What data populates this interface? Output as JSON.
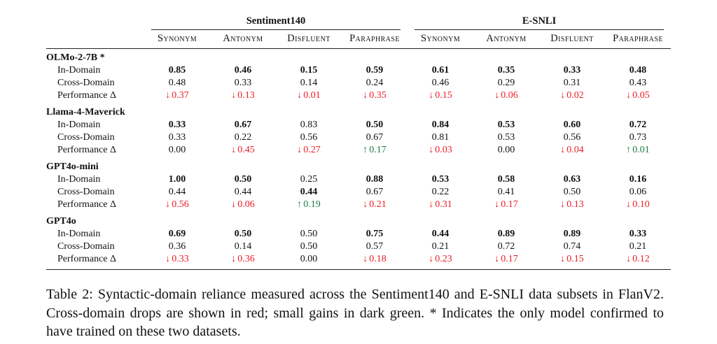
{
  "colors": {
    "text": "#111111",
    "drop_red": "#ed1c24",
    "gain_green": "#1b7b46"
  },
  "icons": {
    "down_arrow": "↓",
    "up_arrow": "↑"
  },
  "table": {
    "groups": [
      {
        "label": "Sentiment140",
        "columns": [
          "Synonym",
          "Antonym",
          "Disfluent",
          "Paraphrase"
        ]
      },
      {
        "label": "E-SNLI",
        "columns": [
          "Synonym",
          "Antonym",
          "Disfluent",
          "Paraphrase"
        ]
      }
    ],
    "row_labels": {
      "in_domain": "In-Domain",
      "cross_domain": "Cross-Domain",
      "delta": "Performance Δ"
    },
    "models": [
      {
        "name": "OLMo-2-7B *",
        "in_domain": [
          {
            "v": "0.85",
            "b": true
          },
          {
            "v": "0.46",
            "b": true
          },
          {
            "v": "0.15",
            "b": true
          },
          {
            "v": "0.59",
            "b": true
          },
          {
            "v": "0.61",
            "b": true
          },
          {
            "v": "0.35",
            "b": true
          },
          {
            "v": "0.33",
            "b": true
          },
          {
            "v": "0.48",
            "b": true
          }
        ],
        "cross_domain": [
          {
            "v": "0.48",
            "b": false
          },
          {
            "v": "0.33",
            "b": false
          },
          {
            "v": "0.14",
            "b": false
          },
          {
            "v": "0.24",
            "b": false
          },
          {
            "v": "0.46",
            "b": false
          },
          {
            "v": "0.29",
            "b": false
          },
          {
            "v": "0.31",
            "b": false
          },
          {
            "v": "0.43",
            "b": false
          }
        ],
        "delta": [
          {
            "dir": "down",
            "v": "0.37"
          },
          {
            "dir": "down",
            "v": "0.13"
          },
          {
            "dir": "down",
            "v": "0.01"
          },
          {
            "dir": "down",
            "v": "0.35"
          },
          {
            "dir": "down",
            "v": "0.15"
          },
          {
            "dir": "down",
            "v": "0.06"
          },
          {
            "dir": "down",
            "v": "0.02"
          },
          {
            "dir": "down",
            "v": "0.05"
          }
        ]
      },
      {
        "name": "Llama-4-Maverick",
        "in_domain": [
          {
            "v": "0.33",
            "b": true
          },
          {
            "v": "0.67",
            "b": true
          },
          {
            "v": "0.83",
            "b": false
          },
          {
            "v": "0.50",
            "b": true
          },
          {
            "v": "0.84",
            "b": true
          },
          {
            "v": "0.53",
            "b": true
          },
          {
            "v": "0.60",
            "b": true
          },
          {
            "v": "0.72",
            "b": true
          }
        ],
        "cross_domain": [
          {
            "v": "0.33",
            "b": false
          },
          {
            "v": "0.22",
            "b": false
          },
          {
            "v": "0.56",
            "b": false
          },
          {
            "v": "0.67",
            "b": false
          },
          {
            "v": "0.81",
            "b": false
          },
          {
            "v": "0.53",
            "b": false
          },
          {
            "v": "0.56",
            "b": false
          },
          {
            "v": "0.73",
            "b": false
          }
        ],
        "delta": [
          {
            "dir": "none",
            "v": "0.00"
          },
          {
            "dir": "down",
            "v": "0.45"
          },
          {
            "dir": "down",
            "v": "0.27"
          },
          {
            "dir": "up",
            "v": "0.17"
          },
          {
            "dir": "down",
            "v": "0.03"
          },
          {
            "dir": "none",
            "v": "0.00"
          },
          {
            "dir": "down",
            "v": "0.04"
          },
          {
            "dir": "up",
            "v": "0.01"
          }
        ]
      },
      {
        "name": "GPT4o-mini",
        "in_domain": [
          {
            "v": "1.00",
            "b": true
          },
          {
            "v": "0.50",
            "b": true
          },
          {
            "v": "0.25",
            "b": false
          },
          {
            "v": "0.88",
            "b": true
          },
          {
            "v": "0.53",
            "b": true
          },
          {
            "v": "0.58",
            "b": true
          },
          {
            "v": "0.63",
            "b": true
          },
          {
            "v": "0.16",
            "b": true
          }
        ],
        "cross_domain": [
          {
            "v": "0.44",
            "b": false
          },
          {
            "v": "0.44",
            "b": false
          },
          {
            "v": "0.44",
            "b": true
          },
          {
            "v": "0.67",
            "b": false
          },
          {
            "v": "0.22",
            "b": false
          },
          {
            "v": "0.41",
            "b": false
          },
          {
            "v": "0.50",
            "b": false
          },
          {
            "v": "0.06",
            "b": false
          }
        ],
        "delta": [
          {
            "dir": "down",
            "v": "0.56"
          },
          {
            "dir": "down",
            "v": "0.06"
          },
          {
            "dir": "up",
            "v": "0.19"
          },
          {
            "dir": "down",
            "v": "0.21"
          },
          {
            "dir": "down",
            "v": "0.31"
          },
          {
            "dir": "down",
            "v": "0.17"
          },
          {
            "dir": "down",
            "v": "0.13"
          },
          {
            "dir": "down",
            "v": "0.10"
          }
        ]
      },
      {
        "name": "GPT4o",
        "in_domain": [
          {
            "v": "0.69",
            "b": true
          },
          {
            "v": "0.50",
            "b": true
          },
          {
            "v": "0.50",
            "b": false
          },
          {
            "v": "0.75",
            "b": true
          },
          {
            "v": "0.44",
            "b": true
          },
          {
            "v": "0.89",
            "b": true
          },
          {
            "v": "0.89",
            "b": true
          },
          {
            "v": "0.33",
            "b": true
          }
        ],
        "cross_domain": [
          {
            "v": "0.36",
            "b": false
          },
          {
            "v": "0.14",
            "b": false
          },
          {
            "v": "0.50",
            "b": false
          },
          {
            "v": "0.57",
            "b": false
          },
          {
            "v": "0.21",
            "b": false
          },
          {
            "v": "0.72",
            "b": false
          },
          {
            "v": "0.74",
            "b": false
          },
          {
            "v": "0.21",
            "b": false
          }
        ],
        "delta": [
          {
            "dir": "down",
            "v": "0.33"
          },
          {
            "dir": "down",
            "v": "0.36"
          },
          {
            "dir": "none",
            "v": "0.00"
          },
          {
            "dir": "down",
            "v": "0.18"
          },
          {
            "dir": "down",
            "v": "0.23"
          },
          {
            "dir": "down",
            "v": "0.17"
          },
          {
            "dir": "down",
            "v": "0.15"
          },
          {
            "dir": "down",
            "v": "0.12"
          }
        ]
      }
    ]
  },
  "caption": {
    "text": "Table 2: Syntactic-domain reliance measured across the Sentiment140 and E-SNLI data subsets in FlanV2. Cross-domain drops are shown in red; small gains in dark green. * Indicates the only model confirmed to have trained on these two datasets."
  }
}
